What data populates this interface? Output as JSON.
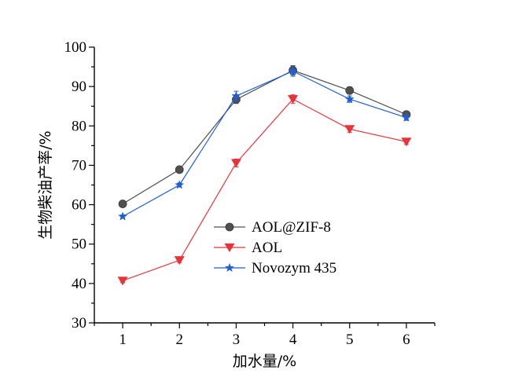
{
  "chart_data": {
    "type": "line",
    "title": "",
    "xlabel": "加水量/%",
    "ylabel": "生物柴油产率/%",
    "x": [
      1,
      2,
      3,
      4,
      5,
      6
    ],
    "xlim": [
      0.5,
      6.5
    ],
    "ylim": [
      30,
      100
    ],
    "x_ticks": [
      1,
      2,
      3,
      4,
      5,
      6
    ],
    "y_ticks": [
      30,
      40,
      50,
      60,
      70,
      80,
      90,
      100
    ],
    "grid": false,
    "legend_position": "lower-center",
    "series": [
      {
        "name": "AOL@ZIF-8",
        "values": [
          60.2,
          68.9,
          86.7,
          94.1,
          89.0,
          82.9
        ],
        "errors": [
          0.5,
          0.5,
          1.0,
          1.2,
          0.9,
          0.6
        ],
        "color": "#505050",
        "marker": "circle"
      },
      {
        "name": "AOL",
        "values": [
          40.7,
          45.9,
          70.6,
          86.8,
          79.2,
          76.0
        ],
        "errors": [
          0.5,
          0.6,
          1.0,
          1.1,
          0.8,
          0.7
        ],
        "color": "#e8333a",
        "marker": "triangle-down"
      },
      {
        "name": "Novozym 435",
        "values": [
          57.0,
          65.0,
          87.6,
          93.9,
          86.8,
          82.1
        ],
        "errors": [
          0.4,
          0.5,
          1.2,
          1.3,
          0.8,
          0.7
        ],
        "color": "#1f5fd6",
        "marker": "star"
      }
    ]
  }
}
